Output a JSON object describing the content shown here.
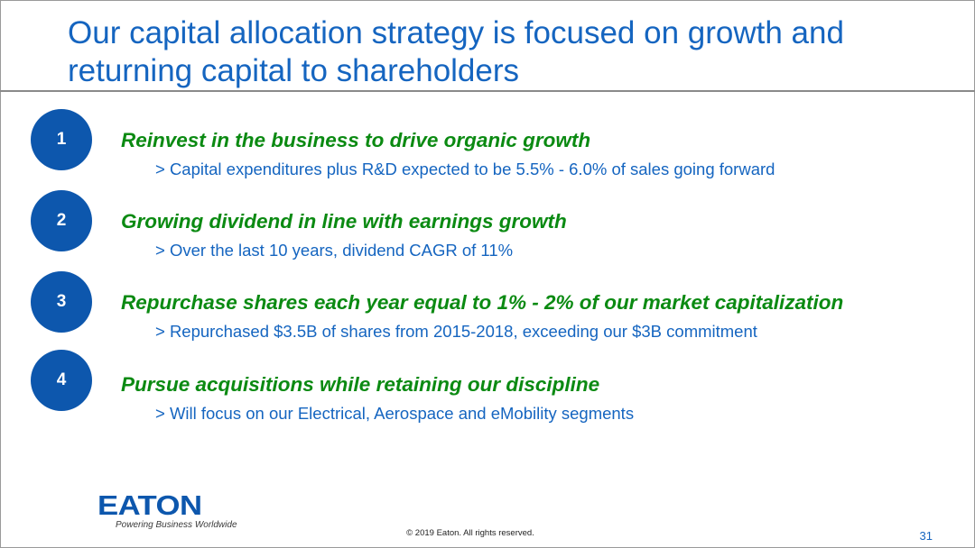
{
  "slide": {
    "title": "Our capital allocation strategy is focused on growth and returning capital to shareholders",
    "items": [
      {
        "number": "1",
        "heading": "Reinvest in the business to drive organic growth",
        "detail": "> Capital expenditures plus R&D expected to be 5.5% - 6.0% of sales going forward"
      },
      {
        "number": "2",
        "heading": "Growing dividend in line with earnings growth",
        "detail": "> Over the last 10 years, dividend CAGR of 11%"
      },
      {
        "number": "3",
        "heading": "Repurchase shares each year equal to 1% - 2% of our market capitalization",
        "detail": "> Repurchased $3.5B of shares from 2015-2018, exceeding our $3B commitment"
      },
      {
        "number": "4",
        "heading": "Pursue acquisitions while retaining our discipline",
        "detail": "> Will focus on our Electrical, Aerospace and eMobility segments"
      }
    ]
  },
  "footer": {
    "logo_text": "EATON",
    "logo_tagline": "Powering Business Worldwide",
    "copyright": "© 2019 Eaton. All rights reserved.",
    "page_number": "31"
  },
  "colors": {
    "title": "#1565c0",
    "heading": "#0b8a12",
    "circle": "#0d57ad",
    "detail": "#1565c0"
  }
}
